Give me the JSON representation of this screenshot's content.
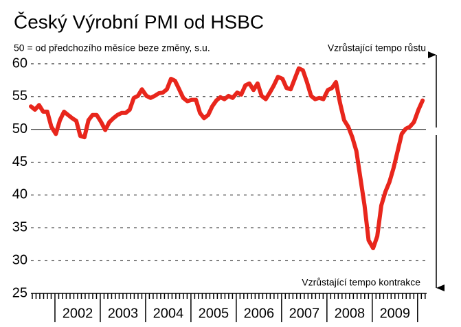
{
  "chart_data": {
    "type": "line",
    "title": "Český Výrobní PMI od HSBC",
    "subtitle": "50 = od předchozího měsíce beze změny, s.u.",
    "annotations": [
      "Vzrůstající tempo růstu",
      "Vzrůstající tempo kontrakce"
    ],
    "color": "#e8261c",
    "x": [
      2001.47,
      2001.56,
      2001.65,
      2001.74,
      2001.83,
      2001.92,
      2002.02,
      2002.11,
      2002.2,
      2002.29,
      2002.38,
      2002.47,
      2002.56,
      2002.65,
      2002.74,
      2002.83,
      2002.92,
      2003.02,
      2003.11,
      2003.2,
      2003.29,
      2003.38,
      2003.47,
      2003.56,
      2003.65,
      2003.74,
      2003.83,
      2003.92,
      2004.02,
      2004.11,
      2004.2,
      2004.29,
      2004.38,
      2004.47,
      2004.56,
      2004.65,
      2004.74,
      2004.83,
      2004.92,
      2005.02,
      2005.11,
      2005.2,
      2005.29,
      2005.38,
      2005.47,
      2005.56,
      2005.65,
      2005.74,
      2005.83,
      2005.92,
      2006.02,
      2006.11,
      2006.2,
      2006.29,
      2006.38,
      2006.47,
      2006.56,
      2006.65,
      2006.74,
      2006.83,
      2006.92,
      2007.02,
      2007.11,
      2007.2,
      2007.29,
      2007.38,
      2007.47,
      2007.56,
      2007.65,
      2007.74,
      2007.83,
      2007.92,
      2008.02,
      2008.11,
      2008.2,
      2008.29,
      2008.38,
      2008.47,
      2008.56,
      2008.65,
      2008.74,
      2008.83,
      2008.92,
      2009.02,
      2009.11,
      2009.2,
      2009.29,
      2009.38,
      2009.47,
      2009.56,
      2009.65,
      2009.74,
      2009.83,
      2009.92,
      2010.02,
      2010.11
    ],
    "values": [
      53.5,
      53,
      53.7,
      52.7,
      52.7,
      50.4,
      49.3,
      51.4,
      52.7,
      52.2,
      51.7,
      51.3,
      49,
      48.8,
      51.4,
      52.2,
      52.2,
      51.1,
      49.9,
      51.1,
      51.7,
      52.2,
      52.5,
      52.5,
      53,
      54.8,
      55.1,
      56.1,
      55.1,
      54.8,
      55.1,
      55.5,
      55.6,
      56.1,
      57.7,
      57.4,
      56.1,
      54.8,
      54.3,
      54.5,
      54.5,
      52.5,
      51.7,
      52.2,
      53.5,
      54.4,
      54.9,
      54.6,
      55.1,
      54.8,
      55.6,
      55.3,
      56.7,
      57,
      56,
      57,
      55.1,
      54.6,
      55.6,
      56.7,
      58,
      57.7,
      56.3,
      56.1,
      57.7,
      59.3,
      59,
      57.2,
      55.1,
      54.6,
      54.8,
      54.6,
      56,
      56.3,
      57.2,
      54,
      51.4,
      50.4,
      48.8,
      46.7,
      42.5,
      38.4,
      33.1,
      31.9,
      33.7,
      38.4,
      40.5,
      42,
      44.1,
      46.7,
      49.3,
      50.1,
      50.4,
      51.1,
      53,
      54.4
    ],
    "xlim": [
      2001.47,
      2010.2
    ],
    "xticks": [
      {
        "value": 2002.5,
        "label": "2002"
      },
      {
        "value": 2003.5,
        "label": "2003"
      },
      {
        "value": 2004.5,
        "label": "2004"
      },
      {
        "value": 2005.5,
        "label": "2005"
      },
      {
        "value": 2006.5,
        "label": "2006"
      },
      {
        "value": 2007.5,
        "label": "2007"
      },
      {
        "value": 2008.5,
        "label": "2008"
      },
      {
        "value": 2009.5,
        "label": "2009"
      }
    ],
    "ylim": [
      25,
      60
    ],
    "yticks": [
      25,
      30,
      35,
      40,
      45,
      50,
      55,
      60
    ],
    "reference_line": 50,
    "grid": true
  }
}
